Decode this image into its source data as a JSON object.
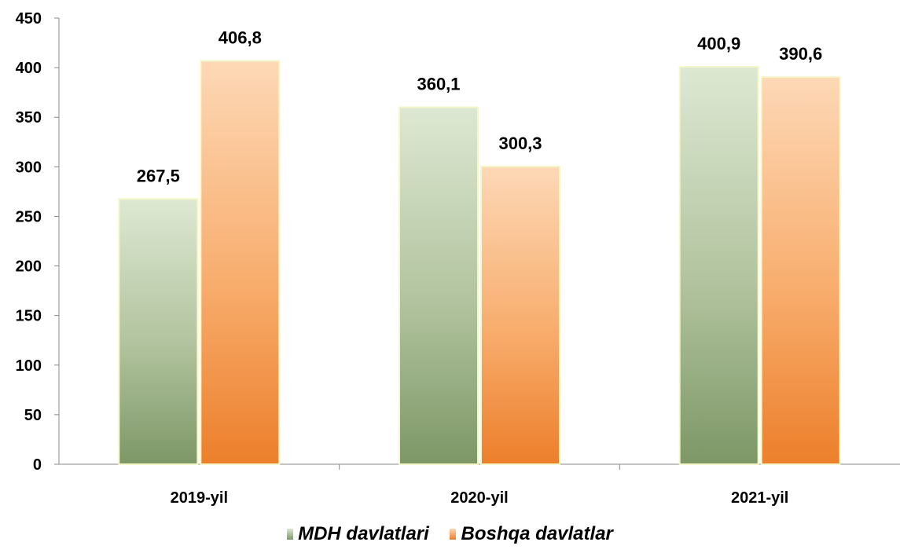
{
  "chart_data": {
    "type": "bar",
    "categories": [
      "2019-yil",
      "2020-yil",
      "2021-yil"
    ],
    "series": [
      {
        "name": "MDH davlatlari",
        "values": [
          267.5,
          360.1,
          400.9
        ],
        "labels": [
          "267,5",
          "360,1",
          "400,9"
        ],
        "color": "#8fa67a"
      },
      {
        "name": "Boshqa davlatlar",
        "values": [
          406.8,
          300.3,
          390.6
        ],
        "labels": [
          "406,8",
          "300,3",
          "390,6"
        ],
        "color": "#f0913f"
      }
    ],
    "yticks": [
      "0",
      "50",
      "100",
      "150",
      "200",
      "250",
      "300",
      "350",
      "400",
      "450"
    ],
    "ylim": [
      0,
      450
    ],
    "grid": false,
    "legend_position": "bottom"
  }
}
